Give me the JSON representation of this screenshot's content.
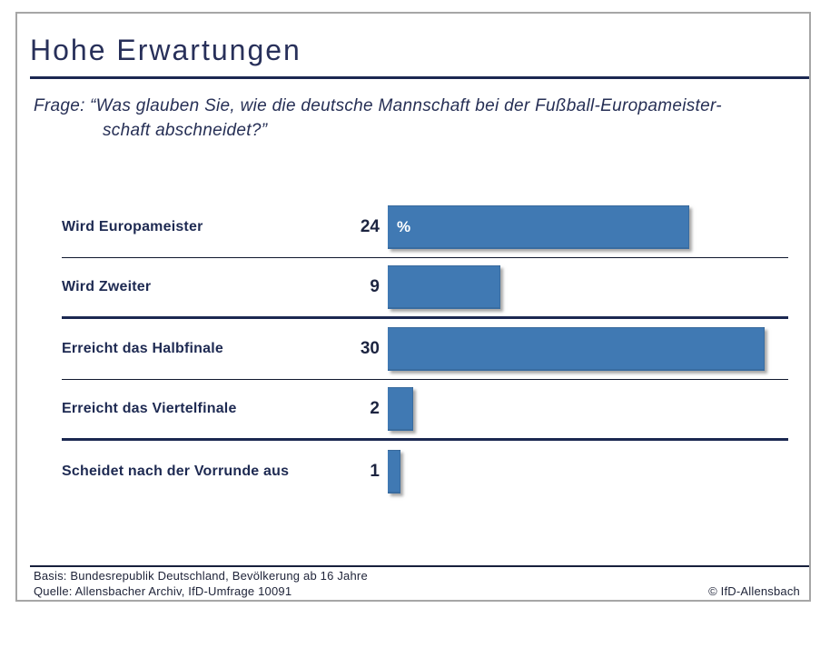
{
  "header": {
    "title": "Hohe Erwartungen"
  },
  "question": {
    "prefix": "Frage:",
    "line1": "“Was glauben Sie, wie die deutsche Mannschaft bei der Fußball-Europameister-",
    "line2": "schaft abschneidet?”"
  },
  "chart_data": {
    "type": "bar",
    "orientation": "horizontal",
    "title": "Hohe Erwartungen",
    "subtitle": "Frage: “Was glauben Sie, wie die deutsche Mannschaft bei der Fußball-Europameisterschaft abschneidet?”",
    "unit_label": "%",
    "categories": [
      "Wird Europameister",
      "Wird Zweiter",
      "Erreicht das Halbfinale",
      "Erreicht das Viertelfinale",
      "Scheidet nach der Vorrunde aus"
    ],
    "values": [
      24,
      9,
      30,
      2,
      1
    ],
    "xlabel": "",
    "ylabel": "",
    "xlim": [
      0,
      32
    ],
    "grid": false,
    "legend": false,
    "value_labels_position": "left-of-bar",
    "bar_color": "#4079b3"
  },
  "footer": {
    "basis": "Basis: Bundesrepublik Deutschland, Bevölkerung ab 16 Jahre",
    "quelle": "Quelle: Allensbacher Archiv, IfD-Umfrage 10091",
    "copyright": "© IfD-Allensbach"
  },
  "colors": {
    "navy_text": "#1e2a52",
    "rule_navy": "#1b2851",
    "bar_blue": "#4079b3",
    "card_border_gray": "#a6a6a6"
  }
}
